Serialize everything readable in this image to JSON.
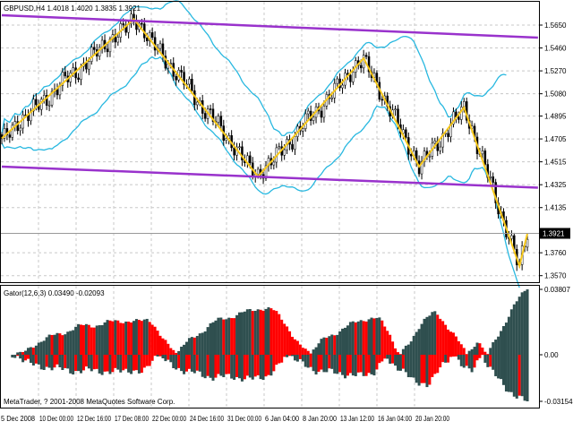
{
  "chart_data": [
    {
      "type": "candlestick",
      "title": "GBPUSD,H4  1.4018 1.4020 1.3835 1.3921",
      "symbol": "GBPUSD,H4",
      "ohlc_last": {
        "open": 1.4018,
        "high": 1.402,
        "low": 1.3835,
        "close": 1.3921
      },
      "current_price_label": "1.3921",
      "ylim": [
        1.357,
        1.57
      ],
      "y_ticks": [
        "1.5650",
        "1.5460",
        "1.5270",
        "1.5080",
        "1.4895",
        "1.4705",
        "1.4515",
        "1.4325",
        "1.4135",
        "1.3760",
        "1.3570"
      ],
      "x_ticks": [
        "5 Dec 2008",
        "10 Dec 00:00",
        "12 Dec 16:00",
        "17 Dec 08:00",
        "22 Dec 00:00",
        "24 Dec 16:00",
        "31 Dec 00:00",
        "6 Jan 04:00",
        "8 Jan 20:00",
        "13 Jan 12:00",
        "16 Jan 04:00",
        "20 Jan 20:00"
      ],
      "bar_count": 200,
      "zigzag": [
        {
          "bar": 0,
          "price": 1.471
        },
        {
          "bar": 50,
          "price": 1.57
        },
        {
          "bar": 97,
          "price": 1.4393
        },
        {
          "bar": 137,
          "price": 1.5375
        },
        {
          "bar": 158,
          "price": 1.4475
        },
        {
          "bar": 175,
          "price": 1.4966
        },
        {
          "bar": 196,
          "price": 1.365
        },
        {
          "bar": 199,
          "price": 1.3921
        }
      ],
      "channel_upper": [
        {
          "bar": 0,
          "price": 1.5732
        },
        {
          "bar": 203,
          "price": 1.5546
        }
      ],
      "channel_lower": [
        {
          "bar": 0,
          "price": 1.4475
        },
        {
          "bar": 203,
          "price": 1.43
        }
      ],
      "grid": true,
      "colors": {
        "zigzag": "#f7c81a",
        "channel": "#9932cc",
        "bands": "#28b8e0",
        "bull": "#ffffff",
        "bear": "#000000"
      }
    },
    {
      "type": "histogram",
      "title": "Gator(12,6,3) 0.03490 -0.02093",
      "ylim": [
        -0.03154,
        0.03807
      ],
      "y_ticks": [
        "0.03807",
        "0.00",
        "-0.03154"
      ],
      "colors": {
        "up": "#2f4f4f",
        "down": "#ff0000"
      }
    }
  ],
  "footer": "MetaTrader, ? 2001-2008 MetaQuotes Software Corp."
}
